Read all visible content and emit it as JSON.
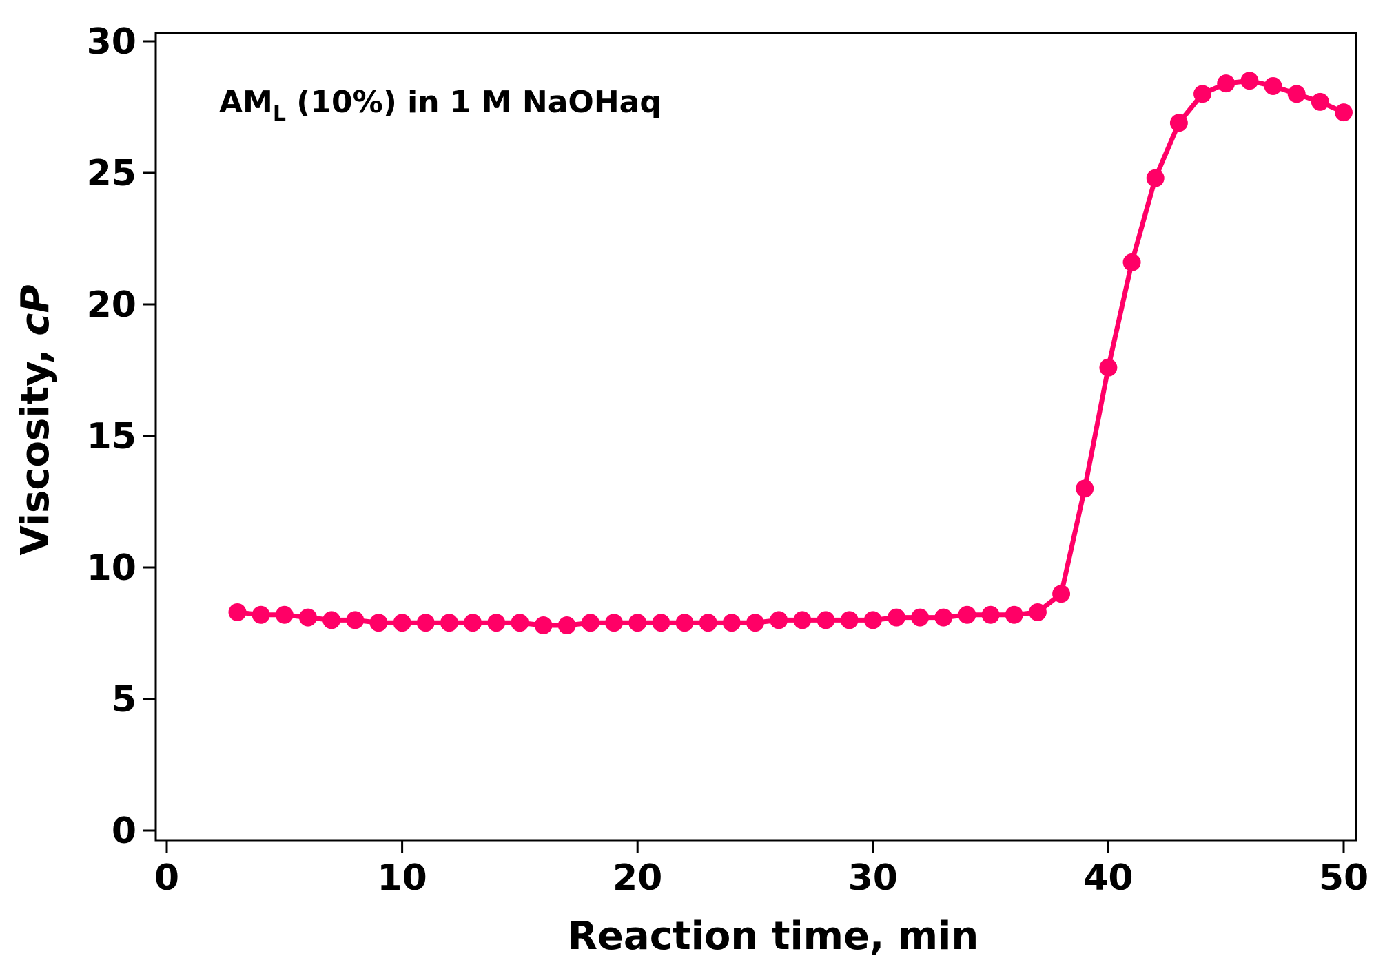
{
  "chart_data": {
    "type": "line",
    "title": "",
    "xlabel": "Reaction time, min",
    "ylabel_main": "Viscosity, ",
    "ylabel_italic": "cP",
    "annotation": {
      "main": "AM",
      "subscript": "L",
      "rest": " (10%) in 1 M NaOHaq"
    },
    "xlim": [
      0,
      50
    ],
    "ylim": [
      0,
      30
    ],
    "xticks": [
      0,
      10,
      20,
      30,
      40,
      50
    ],
    "yticks": [
      0,
      5,
      10,
      15,
      20,
      25,
      30
    ],
    "grid": false,
    "colors": {
      "series": "#ff0066",
      "axis": "#000000"
    },
    "series": [
      {
        "name": "AM_L (10%) in 1 M NaOHaq",
        "marker": "circle",
        "x": [
          3,
          4,
          5,
          6,
          7,
          8,
          9,
          10,
          11,
          12,
          13,
          14,
          15,
          16,
          17,
          18,
          19,
          20,
          21,
          22,
          23,
          24,
          25,
          26,
          27,
          28,
          29,
          30,
          31,
          32,
          33,
          34,
          35,
          36,
          37,
          38,
          39,
          40,
          41,
          42,
          43,
          44,
          45,
          46,
          47,
          48,
          49,
          50
        ],
        "y": [
          8.3,
          8.2,
          8.2,
          8.1,
          8.0,
          8.0,
          7.9,
          7.9,
          7.9,
          7.9,
          7.9,
          7.9,
          7.9,
          7.8,
          7.8,
          7.9,
          7.9,
          7.9,
          7.9,
          7.9,
          7.9,
          7.9,
          7.9,
          8.0,
          8.0,
          8.0,
          8.0,
          8.0,
          8.1,
          8.1,
          8.1,
          8.2,
          8.2,
          8.2,
          8.3,
          9.0,
          13.0,
          17.6,
          21.6,
          24.8,
          26.9,
          28.0,
          28.4,
          28.5,
          28.3,
          28.0,
          27.7,
          27.3
        ]
      }
    ]
  }
}
